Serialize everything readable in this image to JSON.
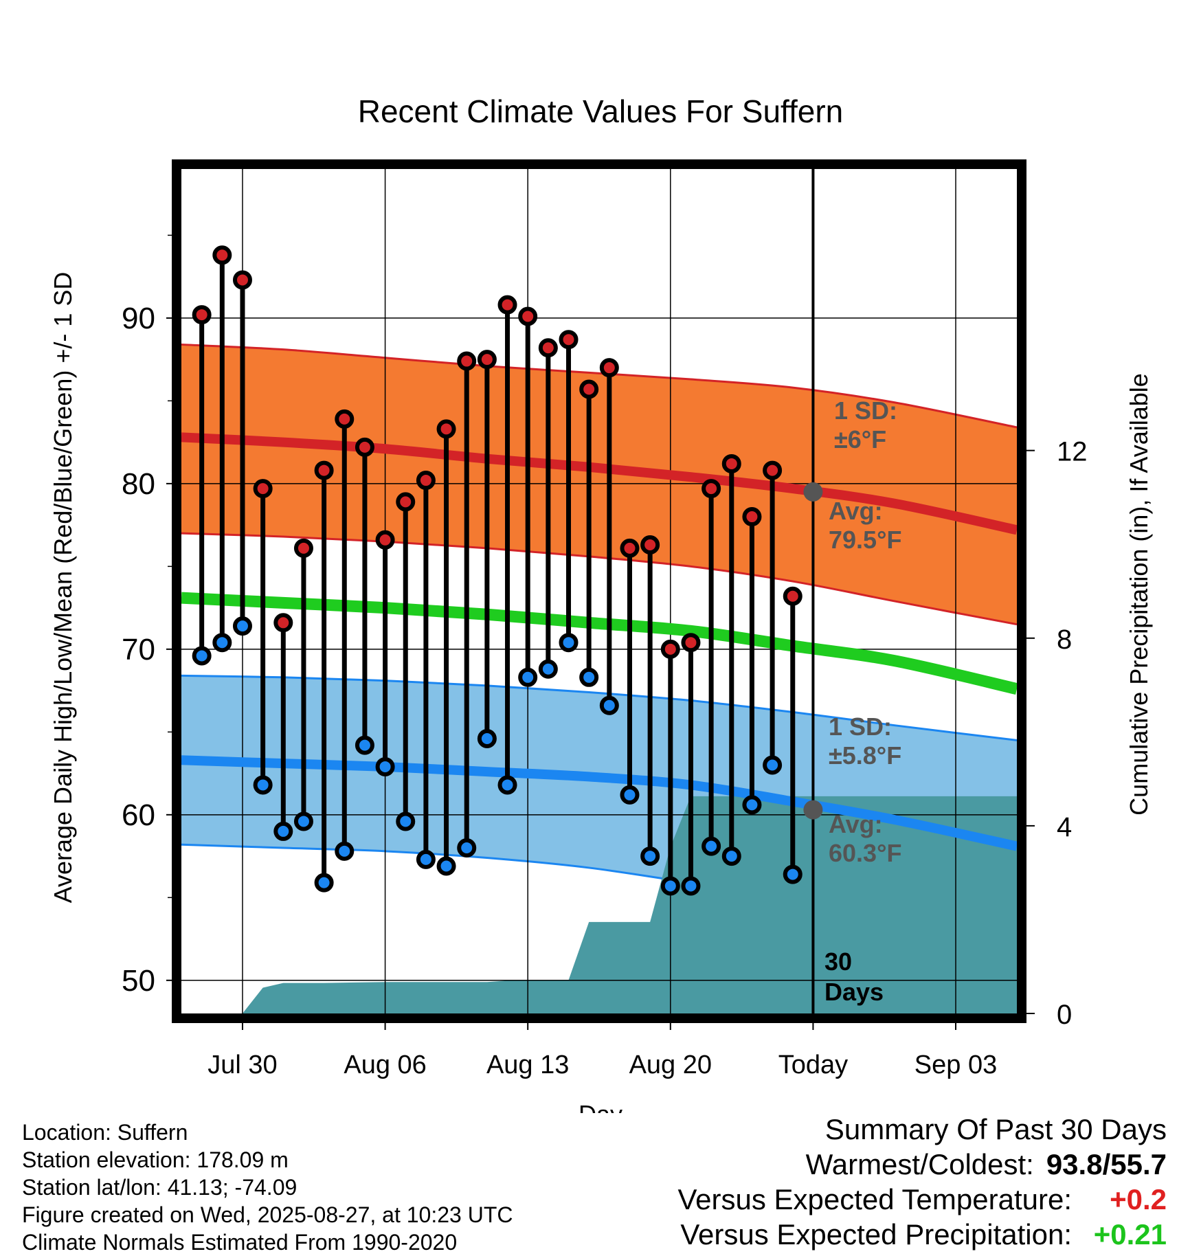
{
  "chart_data": {
    "type": "line",
    "title": "Recent Climate Values For Suffern",
    "xlabel": "Day",
    "ylabel": "Average Daily High/Low/Mean (Red/Blue/Green) +/- 1 SD",
    "y2label": "Cumulative Precipitation (in), If Available",
    "x_range": [
      "2025-07-27",
      "2025-09-06"
    ],
    "ylim": [
      48,
      99
    ],
    "y2lim": [
      0,
      18
    ],
    "yticks": [
      50,
      60,
      70,
      80,
      90
    ],
    "y2ticks": [
      0,
      4,
      8,
      12
    ],
    "xticks": [
      {
        "date": "2025-07-30",
        "label": "Jul 30"
      },
      {
        "date": "2025-08-06",
        "label": "Aug 06"
      },
      {
        "date": "2025-08-13",
        "label": "Aug 13"
      },
      {
        "date": "2025-08-20",
        "label": "Aug 20"
      },
      {
        "date": "2025-08-27",
        "label": "Today"
      },
      {
        "date": "2025-09-03",
        "label": "Sep 03"
      }
    ],
    "grid": true,
    "colors": {
      "high_band": "#f47a31",
      "high_line": "#d32327",
      "low_band": "#84c1e7",
      "low_line": "#1b86f1",
      "mean_line": "#1fcc1f",
      "precip": "#4a9aa2",
      "high_dot": "#d32327",
      "low_dot": "#1b86f1",
      "today_dot": "#555555",
      "annotation": "#555555"
    },
    "normals": {
      "x": [
        "2025-07-27",
        "2025-08-01",
        "2025-08-06",
        "2025-08-11",
        "2025-08-16",
        "2025-08-21",
        "2025-08-26",
        "2025-08-31",
        "2025-09-06"
      ],
      "high_avg": [
        82.8,
        82.5,
        82.1,
        81.5,
        81.0,
        80.4,
        79.7,
        78.8,
        77.2
      ],
      "high_plus_sd": [
        88.4,
        88.1,
        87.6,
        87.1,
        86.7,
        86.3,
        85.8,
        84.9,
        83.4
      ],
      "high_minus_sd": [
        77.0,
        76.8,
        76.5,
        76.1,
        75.6,
        75.0,
        74.1,
        72.9,
        71.5
      ],
      "low_avg": [
        63.3,
        63.1,
        62.9,
        62.6,
        62.3,
        61.8,
        60.8,
        59.7,
        58.1
      ],
      "low_plus_sd": [
        68.4,
        68.3,
        68.1,
        67.8,
        67.4,
        66.9,
        66.2,
        65.4,
        64.5
      ],
      "low_minus_sd": [
        58.2,
        58.0,
        57.8,
        57.4,
        56.8,
        55.9,
        55.1,
        54.6,
        54.0
      ],
      "mean": [
        73.1,
        72.8,
        72.5,
        72.1,
        71.6,
        71.1,
        70.2,
        69.3,
        67.6
      ]
    },
    "daily": [
      {
        "date": "2025-07-28",
        "high": 90.2,
        "low": 69.6
      },
      {
        "date": "2025-07-29",
        "high": 93.8,
        "low": 70.4
      },
      {
        "date": "2025-07-30",
        "high": 92.3,
        "low": 71.4
      },
      {
        "date": "2025-07-31",
        "high": 79.7,
        "low": 61.8
      },
      {
        "date": "2025-08-01",
        "high": 71.6,
        "low": 59.0
      },
      {
        "date": "2025-08-02",
        "high": 76.1,
        "low": 59.6
      },
      {
        "date": "2025-08-03",
        "high": 80.8,
        "low": 55.9
      },
      {
        "date": "2025-08-04",
        "high": 83.9,
        "low": 57.8
      },
      {
        "date": "2025-08-05",
        "high": 82.2,
        "low": 64.2
      },
      {
        "date": "2025-08-06",
        "high": 76.6,
        "low": 62.9
      },
      {
        "date": "2025-08-07",
        "high": 78.9,
        "low": 59.6
      },
      {
        "date": "2025-08-08",
        "high": 80.2,
        "low": 57.3
      },
      {
        "date": "2025-08-09",
        "high": 83.3,
        "low": 56.9
      },
      {
        "date": "2025-08-10",
        "high": 87.4,
        "low": 58.0
      },
      {
        "date": "2025-08-11",
        "high": 87.5,
        "low": 64.6
      },
      {
        "date": "2025-08-12",
        "high": 90.8,
        "low": 61.8
      },
      {
        "date": "2025-08-13",
        "high": 90.1,
        "low": 68.3
      },
      {
        "date": "2025-08-14",
        "high": 88.2,
        "low": 68.8
      },
      {
        "date": "2025-08-15",
        "high": 88.7,
        "low": 70.4
      },
      {
        "date": "2025-08-16",
        "high": 85.7,
        "low": 68.3
      },
      {
        "date": "2025-08-17",
        "high": 87.0,
        "low": 66.6
      },
      {
        "date": "2025-08-18",
        "high": 76.1,
        "low": 61.2
      },
      {
        "date": "2025-08-19",
        "high": 76.3,
        "low": 57.5
      },
      {
        "date": "2025-08-20",
        "high": 70.0,
        "low": 55.7
      },
      {
        "date": "2025-08-21",
        "high": 70.4,
        "low": 55.7
      },
      {
        "date": "2025-08-22",
        "high": 79.7,
        "low": 58.1
      },
      {
        "date": "2025-08-23",
        "high": 81.2,
        "low": 57.5
      },
      {
        "date": "2025-08-24",
        "high": 78.0,
        "low": 60.6
      },
      {
        "date": "2025-08-25",
        "high": 80.8,
        "low": 63.0
      },
      {
        "date": "2025-08-26",
        "high": 73.2,
        "low": 56.4
      }
    ],
    "precip_cumulative": {
      "x": [
        "2025-07-30",
        "2025-07-31",
        "2025-08-01",
        "2025-08-02",
        "2025-08-03",
        "2025-08-06",
        "2025-08-11",
        "2025-08-12",
        "2025-08-15",
        "2025-08-16",
        "2025-08-19",
        "2025-08-20",
        "2025-08-21",
        "2025-09-06"
      ],
      "values": [
        0.0,
        0.55,
        0.65,
        0.65,
        0.65,
        0.67,
        0.67,
        0.7,
        0.71,
        1.95,
        1.95,
        3.55,
        4.63,
        4.63
      ]
    },
    "today_markers": [
      {
        "series": "high",
        "value": 79.5
      },
      {
        "series": "low",
        "value": 60.3
      }
    ],
    "annotations": {
      "high_sd_label": "1 SD:",
      "high_sd_value": "±6°F",
      "high_avg_label": "Avg:",
      "high_avg_value": "79.5°F",
      "low_sd_label": "1 SD:",
      "low_sd_value": "±5.8°F",
      "low_avg_label": "Avg:",
      "low_avg_value": "60.3°F",
      "window_number": "30",
      "window_unit": "Days"
    }
  },
  "footer": {
    "location": "Location: Suffern",
    "elevation": "Station elevation: 178.09 m",
    "latlon": "Station lat/lon: 41.13; -74.09",
    "created": "Figure created on Wed, 2025-08-27, at 10:23 UTC",
    "normals": "Climate Normals Estimated From 1990-2020"
  },
  "summary": {
    "title": "Summary Of Past 30 Days",
    "warmest_label": "Warmest/Coldest:",
    "warmest_value": "93.8/55.7",
    "temp_label": "Versus Expected Temperature:",
    "temp_value": "+0.2",
    "temp_color": "#e02020",
    "precip_label": "Versus Expected Precipitation:",
    "precip_value": "+0.21",
    "precip_color": "#1cc41c"
  }
}
